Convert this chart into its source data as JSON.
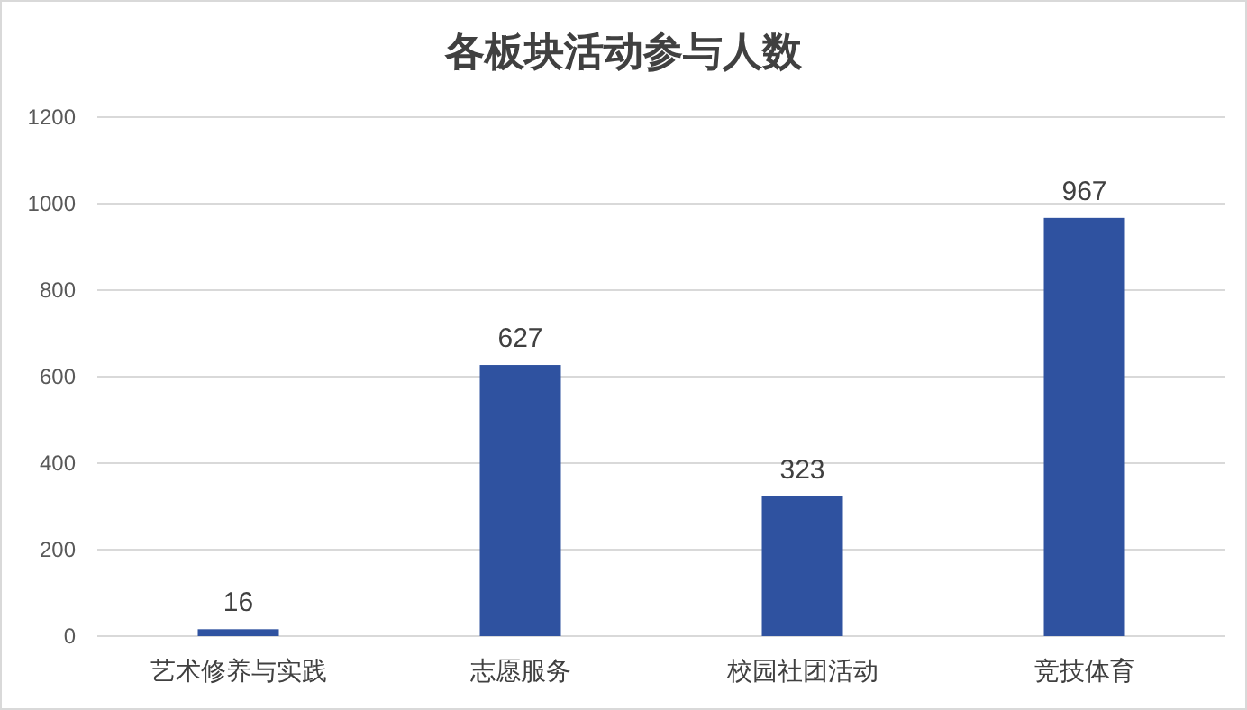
{
  "chart_data": {
    "type": "bar",
    "title": "各板块活动参与人数",
    "categories": [
      "艺术修养与实践",
      "志愿服务",
      "校园社团活动",
      "竞技体育"
    ],
    "values": [
      16,
      627,
      323,
      967
    ],
    "color": "#2f52a0",
    "ylim": [
      0,
      1200
    ],
    "yticks": [
      0,
      200,
      400,
      600,
      800,
      1000,
      1200
    ],
    "grid": "y",
    "data_labels": true
  }
}
